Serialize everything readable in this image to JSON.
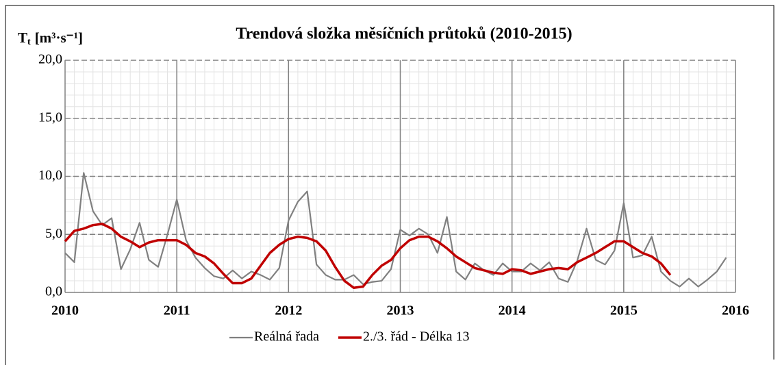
{
  "chart_data": {
    "type": "line",
    "title": "Trendová složka měsíčních průtoků (2010-2015)",
    "y_label": {
      "main": "T",
      "sub": "t",
      "unit": "[m³·s⁻¹]"
    },
    "x": [
      2010,
      2010.083,
      2010.167,
      2010.25,
      2010.333,
      2010.417,
      2010.5,
      2010.583,
      2010.667,
      2010.75,
      2010.833,
      2010.917,
      2011,
      2011.083,
      2011.167,
      2011.25,
      2011.333,
      2011.417,
      2011.5,
      2011.583,
      2011.667,
      2011.75,
      2011.833,
      2011.917,
      2012,
      2012.083,
      2012.167,
      2012.25,
      2012.333,
      2012.417,
      2012.5,
      2012.583,
      2012.667,
      2012.75,
      2012.833,
      2012.917,
      2013,
      2013.083,
      2013.167,
      2013.25,
      2013.333,
      2013.417,
      2013.5,
      2013.583,
      2013.667,
      2013.75,
      2013.833,
      2013.917,
      2014,
      2014.083,
      2014.167,
      2014.25,
      2014.333,
      2014.417,
      2014.5,
      2014.583,
      2014.667,
      2014.75,
      2014.833,
      2014.917,
      2015,
      2015.083,
      2015.167,
      2015.25,
      2015.333,
      2015.417,
      2015.5,
      2015.583,
      2015.667,
      2015.75,
      2015.833,
      2015.917
    ],
    "series": [
      {
        "name": "Reálná řada",
        "color": "#808080",
        "width": 2.2,
        "values": [
          3.4,
          2.6,
          10.3,
          7.0,
          5.8,
          6.4,
          2.0,
          3.7,
          6.0,
          2.8,
          2.2,
          5.0,
          8.0,
          4.5,
          3.0,
          2.1,
          1.4,
          1.2,
          1.9,
          1.2,
          1.8,
          1.5,
          1.1,
          2.1,
          6.2,
          7.8,
          8.7,
          2.4,
          1.5,
          1.1,
          1.1,
          1.5,
          0.7,
          0.9,
          1.0,
          2.0,
          5.4,
          4.9,
          5.5,
          5.0,
          3.4,
          6.5,
          1.8,
          1.1,
          2.5,
          1.9,
          1.5,
          2.5,
          1.8,
          1.8,
          2.5,
          1.9,
          2.6,
          1.2,
          0.9,
          2.7,
          5.5,
          2.8,
          2.4,
          3.6,
          7.7,
          3.0,
          3.2,
          4.8,
          1.8,
          1.0,
          0.5,
          1.2,
          0.5,
          1.1,
          1.8,
          3.0
        ]
      },
      {
        "name": "2./3. řád - Délka 13",
        "color": "#c00000",
        "width": 3.5,
        "values": [
          4.4,
          5.3,
          5.5,
          5.8,
          5.9,
          5.5,
          4.8,
          4.4,
          3.9,
          4.3,
          4.5,
          4.5,
          4.5,
          4.1,
          3.4,
          3.1,
          2.5,
          1.6,
          0.8,
          0.8,
          1.2,
          2.3,
          3.4,
          4.1,
          4.6,
          4.8,
          4.7,
          4.4,
          3.6,
          2.2,
          1.0,
          0.4,
          0.5,
          1.5,
          2.3,
          2.8,
          3.8,
          4.5,
          4.8,
          4.8,
          4.4,
          3.8,
          3.1,
          2.6,
          2.1,
          1.9,
          1.7,
          1.6,
          2.0,
          1.9,
          1.6,
          1.8,
          2.0,
          2.1,
          2.0,
          2.6,
          3.0,
          3.4,
          3.9,
          4.4,
          4.4,
          3.9,
          3.4,
          3.1,
          2.5,
          1.5,
          null,
          null,
          null,
          null,
          null,
          null
        ]
      }
    ],
    "xlim": [
      2010,
      2016
    ],
    "xticks": [
      2010,
      2011,
      2012,
      2013,
      2014,
      2015,
      2016
    ],
    "ylim": [
      0,
      20
    ],
    "yticks": [
      {
        "value": 0,
        "label": "0,0"
      },
      {
        "value": 5,
        "label": "5,0"
      },
      {
        "value": 10,
        "label": "10,0"
      },
      {
        "value": 15,
        "label": "15,0"
      },
      {
        "value": 20,
        "label": "20,0"
      }
    ],
    "grid": true,
    "minor_grid": true,
    "legend": "bottom"
  }
}
